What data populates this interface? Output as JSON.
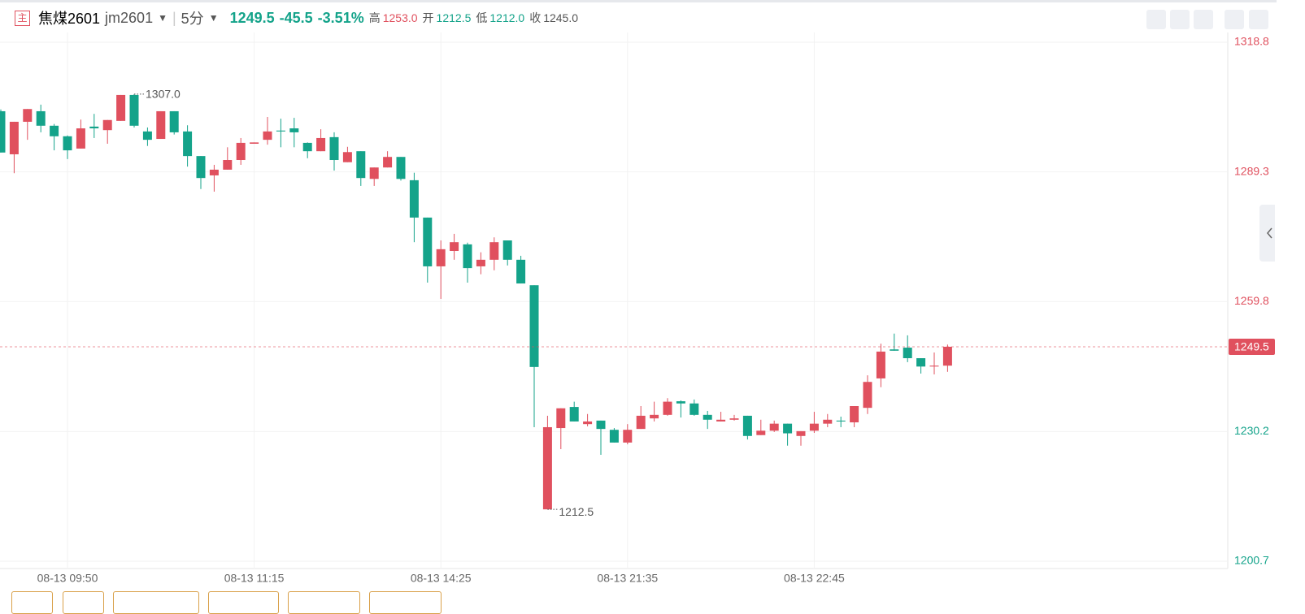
{
  "header": {
    "badge": "主",
    "name": "焦煤2601",
    "code": "jm2601",
    "period": "5分",
    "price": "1249.5",
    "change": "-45.5",
    "change_pct": "-3.51%",
    "high_label": "高",
    "high": "1253.0",
    "open_label": "开",
    "open": "1212.5",
    "low_label": "低",
    "low": "1212.0",
    "close_label": "收",
    "close": "1245.0"
  },
  "chart_data": {
    "type": "candlestick",
    "categories": [
      null,
      null,
      null,
      null,
      null,
      "08-13 09:50",
      null,
      null,
      null,
      null,
      null,
      null,
      null,
      null,
      null,
      null,
      null,
      null,
      null,
      "08-13 11:15",
      null,
      null,
      null,
      null,
      null,
      null,
      null,
      null,
      null,
      null,
      null,
      null,
      null,
      "08-13 14:25",
      null,
      null,
      null,
      null,
      null,
      null,
      null,
      null,
      null,
      null,
      null,
      null,
      null,
      "08-13 21:35",
      null,
      null,
      null,
      null,
      null,
      null,
      null,
      null,
      null,
      null,
      null,
      null,
      null,
      "08-13 22:45",
      null,
      null,
      null,
      null,
      null,
      null,
      null,
      null,
      null,
      null
    ],
    "open": [
      1303.1,
      1293.3,
      1300.7,
      1303.1,
      1299.8,
      1297.4,
      1294.6,
      1299.6,
      1298.8,
      1300.9,
      1306.8,
      1298.5,
      1296.8,
      1303.1,
      1298.5,
      1292.9,
      1288.5,
      1289.8,
      1292.0,
      1295.7,
      1296.6,
      1298.7,
      1299.2,
      1295.9,
      1294.0,
      1297.2,
      1291.5,
      1294.0,
      1287.7,
      1290.3,
      1292.7,
      1287.4,
      1278.9,
      1267.8,
      1271.3,
      1272.8,
      1267.8,
      1269.3,
      1273.7,
      1269.3,
      1263.5,
      1212.5,
      1231.0,
      1235.8,
      1231.9,
      1232.7,
      1230.6,
      1227.7,
      1230.8,
      1233.2,
      1234.0,
      1237.1,
      1236.6,
      1234.0,
      1232.5,
      1232.9,
      1233.8,
      1229.4,
      1230.4,
      1232.0,
      1229.2,
      1230.4,
      1232.0,
      1232.7,
      1232.3,
      1235.6,
      1242.3,
      1248.9,
      1249.3,
      1246.9,
      1245.0,
      1245.2
    ],
    "high": [
      1303.5,
      1300.7,
      1303.6,
      1304.6,
      1300.2,
      1297.6,
      1301.2,
      1302.5,
      1301.1,
      1306.8,
      1307.0,
      1299.4,
      1303.1,
      1303.1,
      1299.9,
      1292.9,
      1290.9,
      1294.9,
      1297.0,
      1296.0,
      1301.8,
      1301.4,
      1301.6,
      1296.0,
      1299.0,
      1298.3,
      1295.0,
      1294.0,
      1290.3,
      1294.0,
      1292.7,
      1289.1,
      1278.9,
      1273.7,
      1275.2,
      1273.2,
      1271.0,
      1274.4,
      1273.7,
      1270.2,
      1263.5,
      1233.8,
      1235.5,
      1237.0,
      1234.2,
      1232.7,
      1231.0,
      1231.9,
      1236.0,
      1237.0,
      1237.8,
      1237.3,
      1237.5,
      1234.9,
      1234.7,
      1234.0,
      1233.8,
      1232.9,
      1232.7,
      1232.0,
      1230.3,
      1234.7,
      1234.2,
      1233.6,
      1236.0,
      1243.0,
      1250.2,
      1252.5,
      1252.1,
      1246.9,
      1248.2,
      1250.0
    ],
    "low": [
      1293.7,
      1289.0,
      1296.6,
      1298.3,
      1294.2,
      1292.2,
      1294.6,
      1297.0,
      1295.7,
      1300.9,
      1299.4,
      1295.2,
      1296.8,
      1297.8,
      1290.5,
      1285.4,
      1284.8,
      1289.8,
      1290.9,
      1295.7,
      1295.5,
      1294.9,
      1294.9,
      1292.4,
      1294.0,
      1289.6,
      1291.5,
      1286.1,
      1286.1,
      1290.3,
      1287.3,
      1273.3,
      1264.1,
      1260.4,
      1269.3,
      1264.1,
      1266.0,
      1266.9,
      1268.0,
      1263.9,
      1231.2,
      1212.5,
      1226.2,
      1232.5,
      1231.4,
      1224.9,
      1227.7,
      1227.3,
      1230.8,
      1232.5,
      1233.8,
      1233.4,
      1233.8,
      1230.8,
      1232.5,
      1232.7,
      1228.4,
      1229.4,
      1230.1,
      1227.0,
      1227.0,
      1229.9,
      1231.2,
      1231.2,
      1231.2,
      1234.2,
      1240.3,
      1248.6,
      1246.0,
      1243.4,
      1243.2,
      1243.8
    ],
    "close": [
      1293.7,
      1300.7,
      1303.6,
      1299.8,
      1297.4,
      1294.2,
      1299.2,
      1299.2,
      1301.1,
      1306.8,
      1299.8,
      1296.6,
      1303.1,
      1298.3,
      1292.9,
      1287.9,
      1289.8,
      1292.0,
      1295.9,
      1296.0,
      1298.5,
      1298.5,
      1298.3,
      1294.0,
      1297.0,
      1292.0,
      1293.8,
      1287.9,
      1290.3,
      1292.7,
      1287.7,
      1278.9,
      1267.8,
      1271.7,
      1273.3,
      1267.4,
      1269.3,
      1273.3,
      1269.3,
      1263.9,
      1244.9,
      1231.2,
      1235.5,
      1232.5,
      1232.5,
      1230.8,
      1227.7,
      1230.6,
      1233.8,
      1234.0,
      1237.0,
      1236.6,
      1234.0,
      1232.9,
      1232.9,
      1233.2,
      1229.2,
      1230.4,
      1232.0,
      1229.8,
      1230.3,
      1232.0,
      1232.9,
      1232.5,
      1236.0,
      1241.5,
      1248.4,
      1248.6,
      1246.9,
      1245.0,
      1245.2,
      1249.5
    ],
    "up_color": "#e0505e",
    "down_color": "#14a38a",
    "ylim": [
      1200.7,
      1318.8
    ],
    "yticks": [
      1200.7,
      1230.2,
      1259.8,
      1289.3,
      1318.8
    ],
    "grid": true,
    "last_price": {
      "value": 1249.5,
      "label": "1249.5"
    },
    "annotations": [
      {
        "value": 1307.0,
        "label": "1307.0",
        "of": "high"
      },
      {
        "value": 1212.5,
        "label": "1212.5",
        "of": "low"
      }
    ]
  }
}
